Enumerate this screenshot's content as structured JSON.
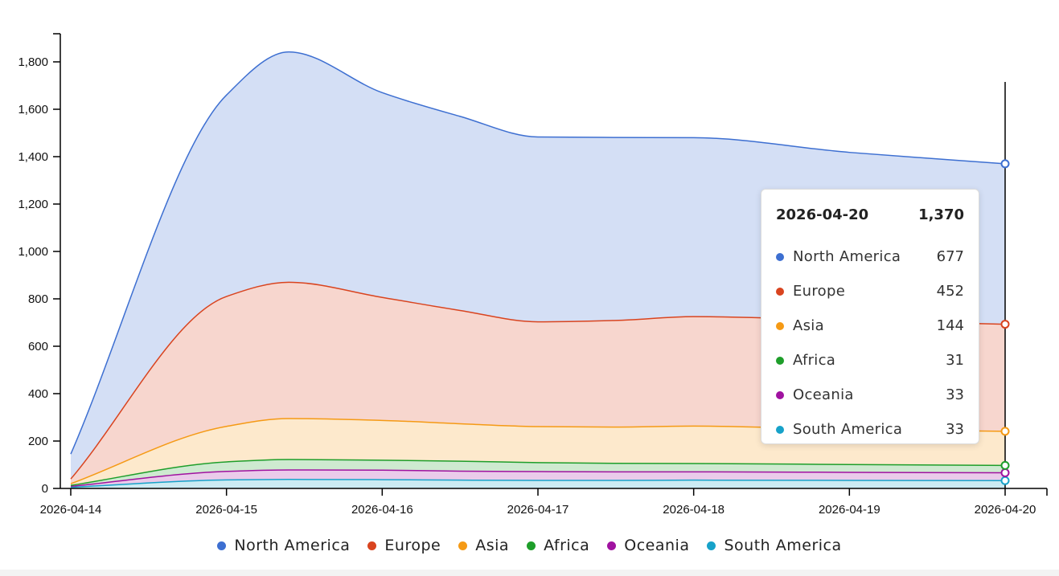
{
  "chart_data": {
    "type": "area",
    "stacked": true,
    "x": [
      "2026-04-14",
      "2026-04-15",
      "2026-04-15.5",
      "2026-04-16",
      "2026-04-16.5",
      "2026-04-17",
      "2026-04-17.5",
      "2026-04-18",
      "2026-04-19",
      "2026-04-20"
    ],
    "x_ticks": [
      "2026-04-14",
      "2026-04-15",
      "2026-04-16",
      "2026-04-17",
      "2026-04-18",
      "2026-04-19",
      "2026-04-20"
    ],
    "x_numeric": [
      0,
      1,
      1.4,
      2,
      2.5,
      3,
      3.5,
      4,
      5,
      6
    ],
    "series": [
      {
        "name": "South America",
        "color": "#17a2c9",
        "values": [
          5,
          36,
          38,
          37,
          35,
          34,
          34,
          35,
          34,
          33
        ]
      },
      {
        "name": "Oceania",
        "color": "#a012a0",
        "values": [
          4,
          36,
          40,
          40,
          38,
          37,
          36,
          35,
          34,
          33
        ]
      },
      {
        "name": "Africa",
        "color": "#1e9e2a",
        "values": [
          4,
          40,
          44,
          42,
          42,
          38,
          36,
          35,
          33,
          31
        ]
      },
      {
        "name": "Asia",
        "color": "#f59a15",
        "values": [
          7,
          150,
          173,
          168,
          158,
          152,
          153,
          158,
          148,
          144
        ]
      },
      {
        "name": "Europe",
        "color": "#d9441f",
        "values": [
          20,
          548,
          575,
          519,
          478,
          442,
          450,
          462,
          460,
          452
        ]
      },
      {
        "name": "North America",
        "color": "#3d6fd1",
        "values": [
          105,
          850,
          972,
          864,
          819,
          780,
          772,
          755,
          709,
          677
        ]
      }
    ],
    "ylim": [
      0,
      1900
    ],
    "y_ticks": [
      0,
      200,
      400,
      600,
      800,
      1000,
      1200,
      1400,
      1600,
      1800
    ],
    "y_tick_labels": [
      "0",
      "200",
      "400",
      "600",
      "800",
      "1,000",
      "1,200",
      "1,400",
      "1,600",
      "1,800"
    ],
    "grid": false,
    "legend_position": "bottom"
  },
  "tooltip": {
    "date": "2026-04-20",
    "total": "1,370",
    "rows": [
      {
        "name": "North America",
        "value": "677",
        "color": "#3d6fd1"
      },
      {
        "name": "Europe",
        "value": "452",
        "color": "#d9441f"
      },
      {
        "name": "Asia",
        "value": "144",
        "color": "#f59a15"
      },
      {
        "name": "Africa",
        "value": "31",
        "color": "#1e9e2a"
      },
      {
        "name": "Oceania",
        "value": "33",
        "color": "#a012a0"
      },
      {
        "name": "South America",
        "value": "33",
        "color": "#17a2c9"
      }
    ]
  },
  "legend": [
    {
      "name": "North America",
      "color": "#3d6fd1"
    },
    {
      "name": "Europe",
      "color": "#d9441f"
    },
    {
      "name": "Asia",
      "color": "#f59a15"
    },
    {
      "name": "Africa",
      "color": "#1e9e2a"
    },
    {
      "name": "Oceania",
      "color": "#a012a0"
    },
    {
      "name": "South America",
      "color": "#17a2c9"
    }
  ]
}
